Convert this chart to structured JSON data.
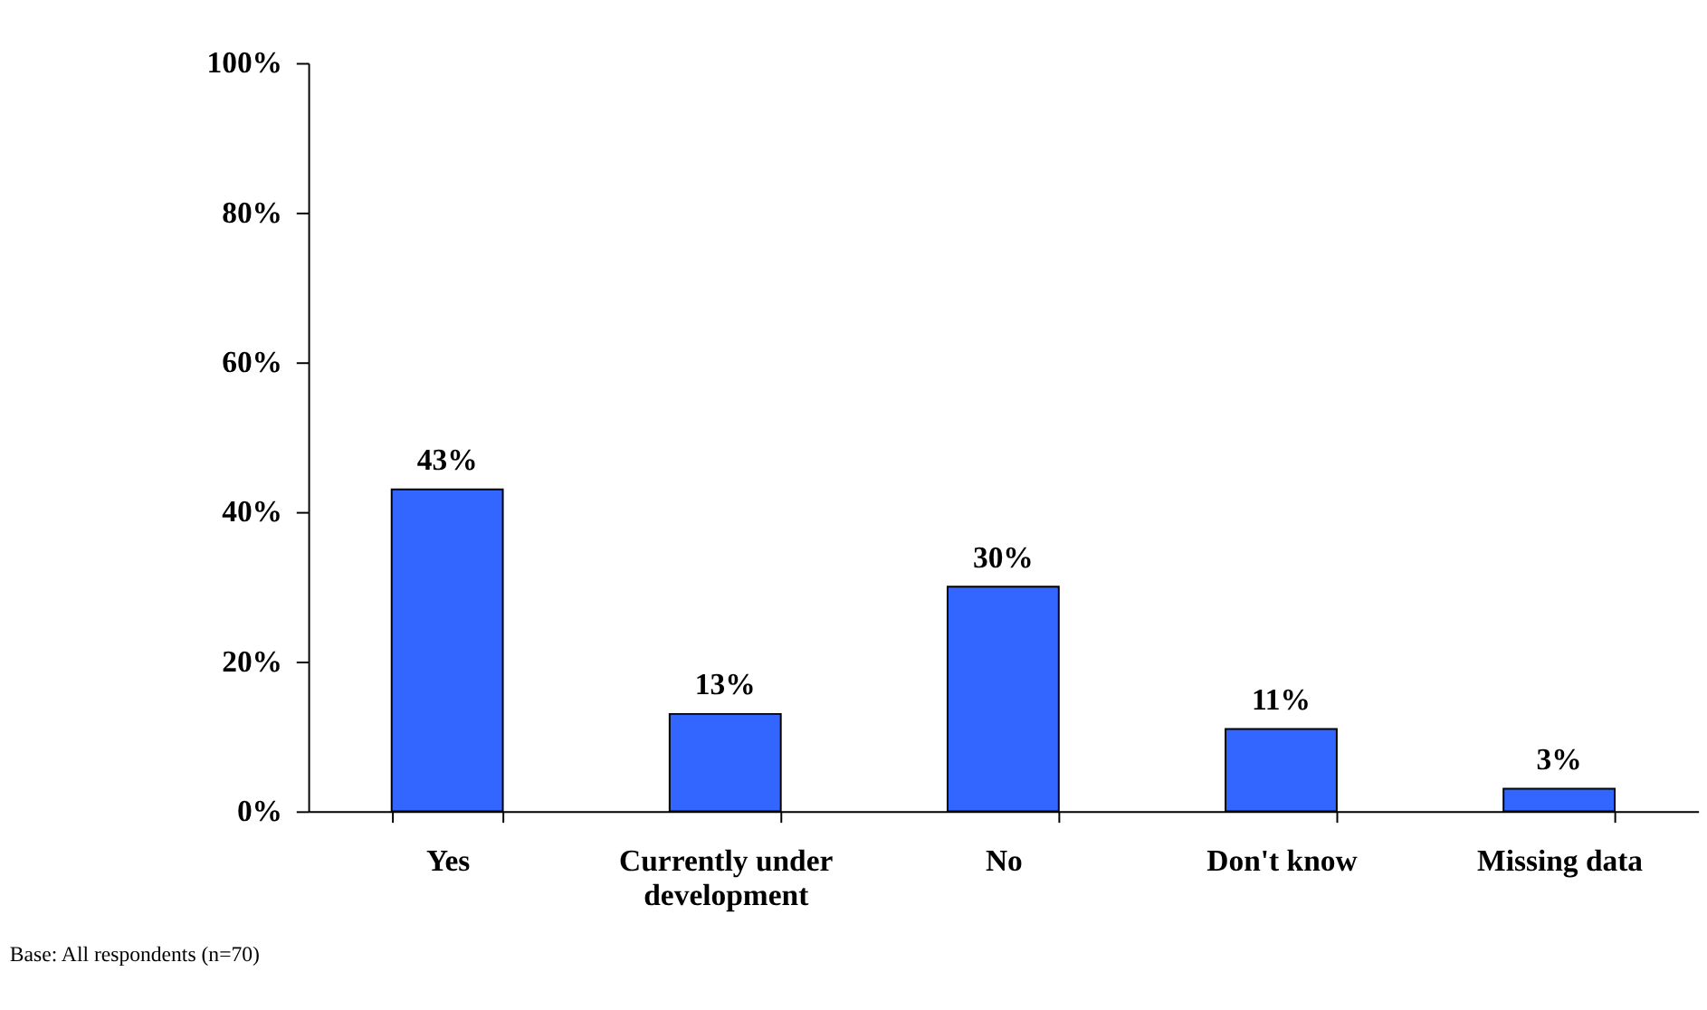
{
  "chart_data": {
    "type": "bar",
    "categories": [
      "Yes",
      "Currently under development",
      "No",
      "Don't know",
      "Missing data"
    ],
    "values": [
      43,
      13,
      30,
      11,
      3
    ],
    "value_labels": [
      "43%",
      "13%",
      "30%",
      "11%",
      "3%"
    ],
    "color": "#3366ff",
    "ylim": [
      0,
      100
    ],
    "yticks": [
      {
        "value": 0,
        "label": "0%"
      },
      {
        "value": 20,
        "label": "20%"
      },
      {
        "value": 40,
        "label": "40%"
      },
      {
        "value": 60,
        "label": "60%"
      },
      {
        "value": 80,
        "label": "80%"
      },
      {
        "value": 100,
        "label": "100%"
      }
    ],
    "grid": false,
    "annotations": [
      "Base:     All respondents (n=70)"
    ]
  }
}
